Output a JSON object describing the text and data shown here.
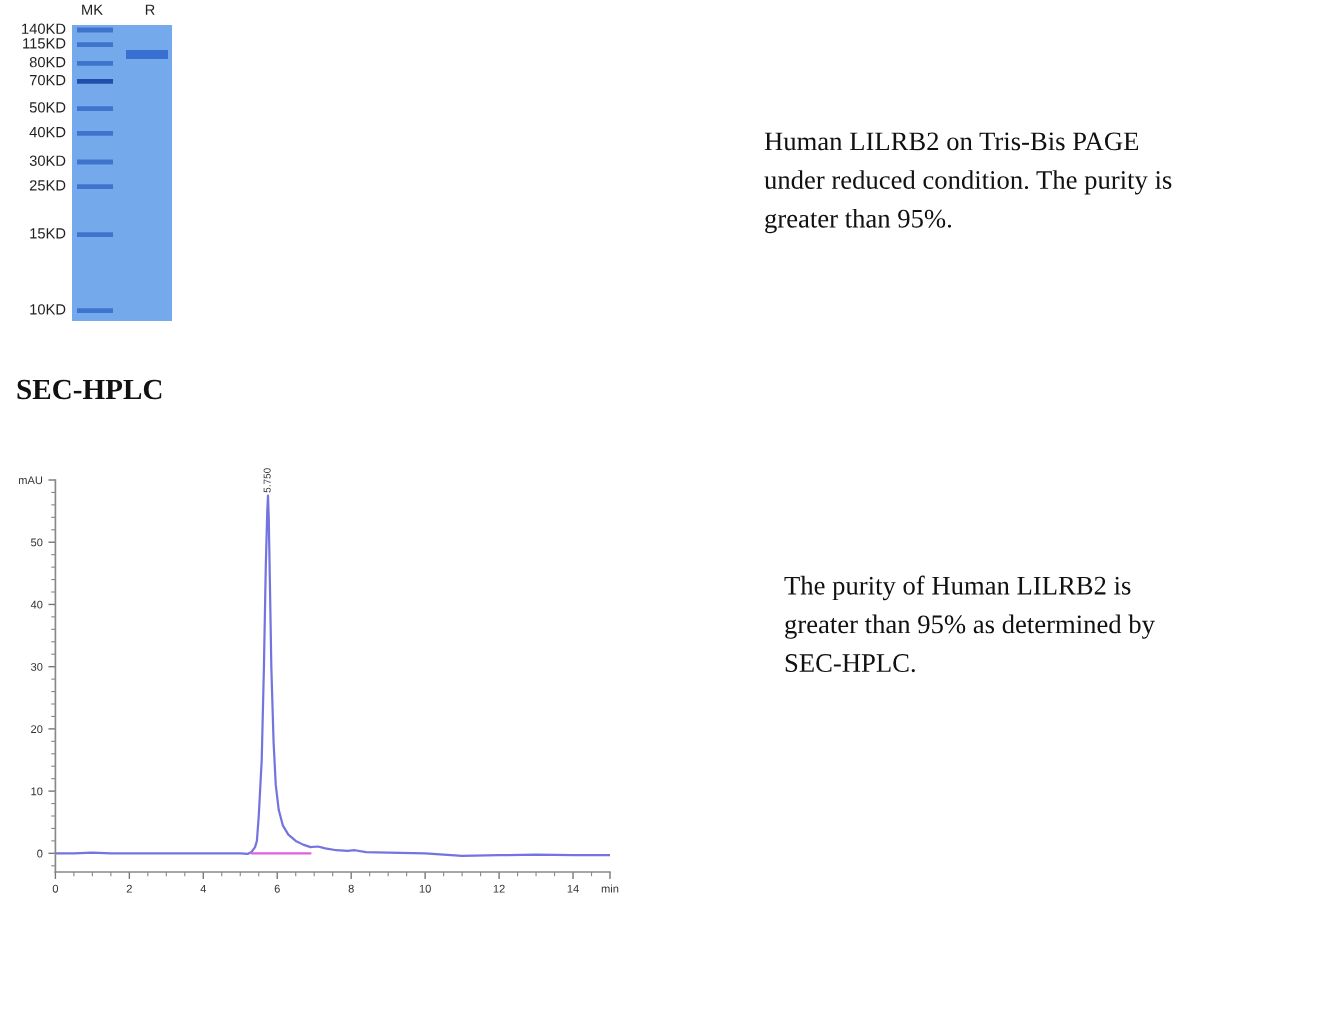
{
  "chart_data": [
    {
      "type": "other",
      "annotations": [
        "MK",
        "R",
        "140KD",
        "115KD",
        "80KD",
        "70KD",
        "50KD",
        "40KD",
        "30KD",
        "25KD",
        "15KD",
        "10KD",
        "Human LILRB2 on Tris-Bis PAGE under reduced condition. The purity is greater than 95%."
      ]
    },
    {
      "type": "line",
      "title": "SEC-HPLC",
      "series": [
        {
          "color": "#7474e0",
          "x": [
            0,
            0.5,
            1,
            1.5,
            2,
            3,
            4,
            5,
            5.2,
            5.3,
            5.4,
            5.45,
            5.5,
            5.58,
            5.64,
            5.69,
            5.73,
            5.75,
            5.77,
            5.8,
            5.84,
            5.9,
            5.96,
            6.04,
            6.15,
            6.3,
            6.5,
            6.7,
            6.9,
            7.1,
            7.3,
            7.6,
            7.9,
            8.1,
            8.4,
            9,
            10,
            10.5,
            11,
            12,
            13,
            14,
            15
          ],
          "values": [
            0,
            0,
            0.1,
            0,
            0,
            0,
            0,
            0,
            -0.1,
            0.2,
            1,
            2,
            6,
            15,
            30,
            46,
            55,
            57.5,
            54,
            44,
            30,
            18,
            11,
            7,
            4.5,
            3,
            2,
            1.4,
            1,
            1.1,
            0.8,
            0.5,
            0.4,
            0.5,
            0.2,
            0.1,
            0,
            -0.2,
            -0.4,
            -0.3,
            -0.2,
            -0.3,
            -0.3
          ]
        },
        {
          "color": "#e060e0",
          "x": [
            5.3,
            6.9
          ],
          "values": [
            0,
            0
          ]
        }
      ],
      "xlim": [
        0,
        15
      ],
      "xticks": [
        0,
        2,
        4,
        6,
        8,
        10,
        12,
        14,
        {
          "value": 15,
          "label": "min"
        }
      ],
      "ylim": [
        -3,
        60
      ],
      "yticks": [
        0,
        10,
        20,
        30,
        40,
        50,
        {
          "value": 60,
          "label": "mAU"
        }
      ],
      "annotations": [
        {
          "text": "5.750",
          "x": 5.75,
          "y": 57.5
        },
        "The purity of Human LILRB2 is greater than 95% as determined by SEC-HPLC."
      ]
    }
  ]
}
